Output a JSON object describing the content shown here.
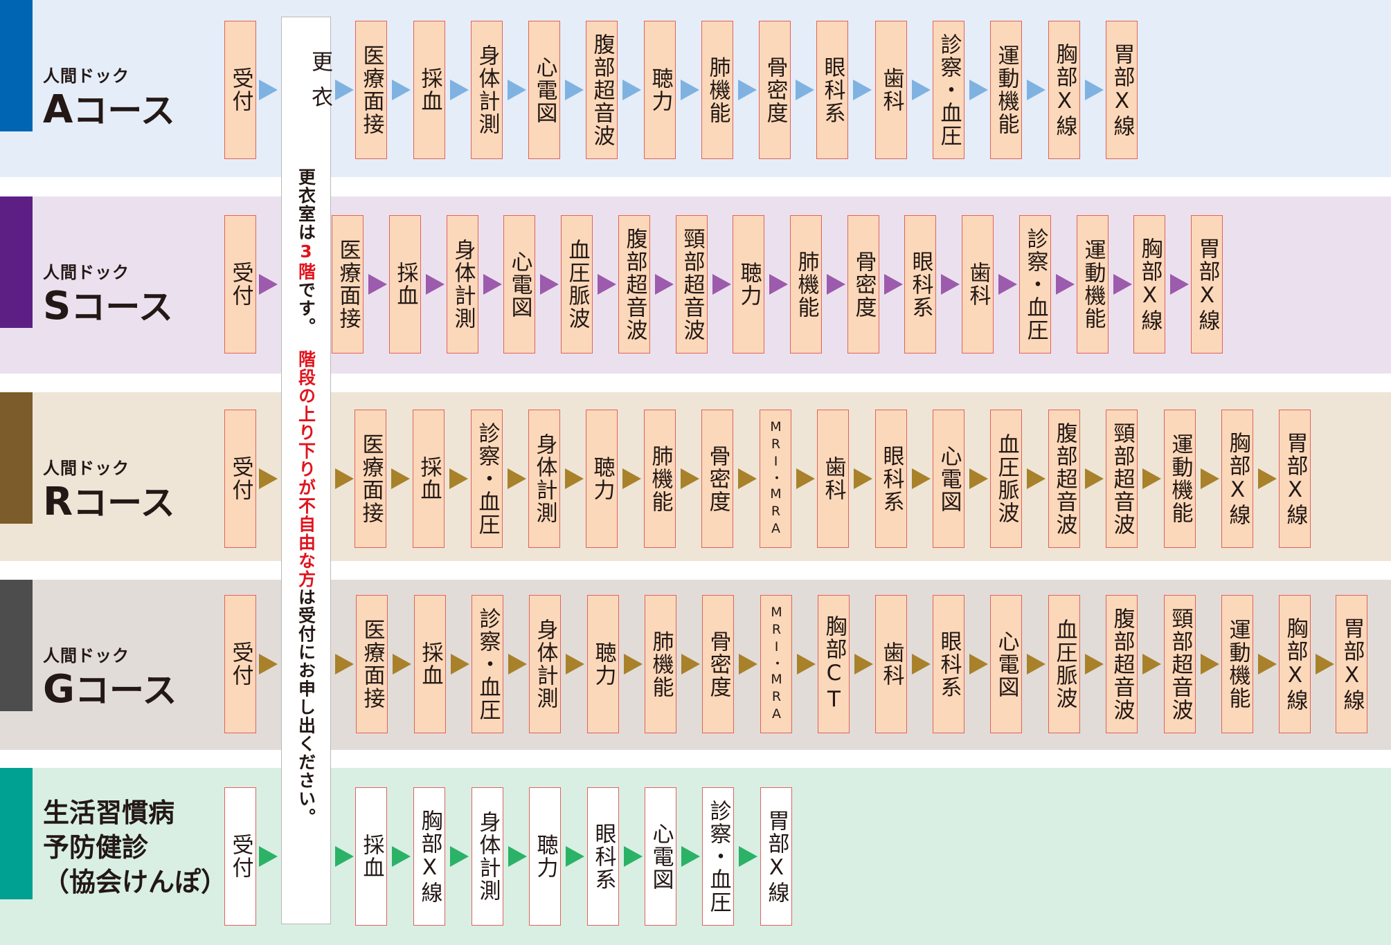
{
  "changing_note": {
    "title": "更衣",
    "note_1": "更衣室は",
    "note_2": "3階",
    "note_3": "です。",
    "note_4": "階段の上り下りが不自由な方",
    "note_5": "は受付にお申し出ください。"
  },
  "courses": [
    {
      "id": "a",
      "label_sub": "人間ドック",
      "label_letter": "A",
      "label_course": "コース",
      "band_color": "#e5edf8",
      "bar_color": "#0066b3",
      "arrow_color": "#7fb2e0",
      "steps": [
        "受付",
        "医療面接",
        "採血",
        "身体計測",
        "心電図",
        "腹部超音波",
        "聴力",
        "肺機能",
        "骨密度",
        "眼科系",
        "歯科",
        "診察・血圧",
        "運動機能",
        "胸部X線",
        "胃部X線"
      ]
    },
    {
      "id": "s",
      "label_sub": "人間ドック",
      "label_letter": "S",
      "label_course": "コース",
      "band_color": "#ebe1ee",
      "bar_color": "#5e1f85",
      "arrow_color": "#9c5bac",
      "steps": [
        "受付",
        "医療面接",
        "採血",
        "身体計測",
        "心電図",
        "血圧脈波",
        "腹部超音波",
        "頸部超音波",
        "聴力",
        "肺機能",
        "骨密度",
        "眼科系",
        "歯科",
        "診察・血圧",
        "運動機能",
        "胸部X線",
        "胃部X線"
      ]
    },
    {
      "id": "r",
      "label_sub": "人間ドック",
      "label_letter": "R",
      "label_course": "コース",
      "band_color": "#eee5d6",
      "bar_color": "#7b5c2a",
      "arrow_color": "#a8812a",
      "steps": [
        "受付",
        "医療面接",
        "採血",
        "診察・血圧",
        "身体計測",
        "聴力",
        "肺機能",
        "骨密度",
        "MRI・MRA",
        "歯科",
        "眼科系",
        "心電図",
        "血圧脈波",
        "腹部超音波",
        "頸部超音波",
        "運動機能",
        "胸部X線",
        "胃部X線"
      ]
    },
    {
      "id": "g",
      "label_sub": "人間ドック",
      "label_letter": "G",
      "label_course": "コース",
      "band_color": "#e2dcd9",
      "bar_color": "#4d4d4d",
      "arrow_color": "#a8812a",
      "steps": [
        "受付",
        "医療面接",
        "採血",
        "診察・血圧",
        "身体計測",
        "聴力",
        "肺機能",
        "骨密度",
        "MRI・MRA",
        "胸部CT",
        "歯科",
        "眼科系",
        "心電図",
        "血圧脈波",
        "腹部超音波",
        "頸部超音波",
        "運動機能",
        "胸部X線",
        "胃部X線"
      ]
    },
    {
      "id": "k",
      "label_lines": [
        "生活習慣病",
        "予防健診",
        "（協会けんぽ）"
      ],
      "band_color": "#d9efe3",
      "bar_color": "#00a093",
      "arrow_color": "#2bb266",
      "boxes_white": true,
      "steps": [
        "受付",
        "採血",
        "胸部X線",
        "身体計測",
        "聴力",
        "眼科系",
        "心電図",
        "診察・血圧",
        "胃部X線"
      ]
    }
  ]
}
